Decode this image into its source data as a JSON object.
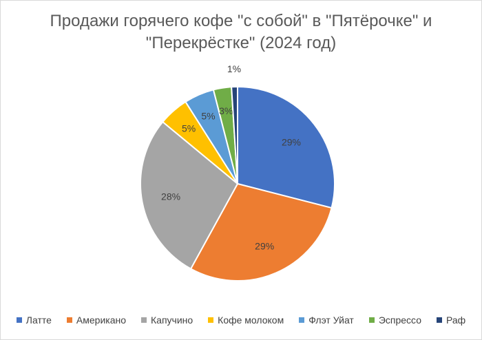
{
  "chart_data": {
    "type": "pie",
    "title_lines": [
      "Продажи горячего кофе \"с собой\" в \"Пятёрочке\" и",
      "\"Перекрёстке\" (2024 год)"
    ],
    "categories": [
      "Латте",
      "Американо",
      "Капучино",
      "Кофе молоком",
      "Флэт Уйат",
      "Эспрессо",
      "Раф"
    ],
    "values": [
      29,
      29,
      28,
      5,
      5,
      3,
      1
    ],
    "data_labels": [
      "29%",
      "29%",
      "28%",
      "5%",
      "5%",
      "3%",
      "1%"
    ],
    "colors": [
      "#4472C4",
      "#ED7D31",
      "#A5A5A5",
      "#FFC000",
      "#5B9BD5",
      "#70AD47",
      "#264478"
    ],
    "legend_position": "bottom",
    "start_angle_deg": 0,
    "direction": "clockwise"
  }
}
